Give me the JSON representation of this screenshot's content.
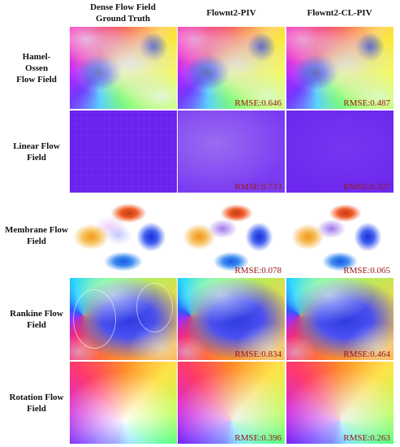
{
  "columns": [
    {
      "line1": "Dense Flow Field",
      "line2": "Ground Truth"
    },
    {
      "line1": "Flownt2-PIV",
      "line2": ""
    },
    {
      "line1": "Flownt2-CL-PIV",
      "line2": ""
    }
  ],
  "rows": [
    {
      "label_lines": [
        "Hamel-",
        "Ossen",
        "Flow Field"
      ],
      "rmse_flownet2": "RMSE:0.646",
      "rmse_cl": "RMSE:0.487"
    },
    {
      "label_lines": [
        "Linear Flow",
        "Field"
      ],
      "rmse_flownet2": "RMSE:0.733",
      "rmse_cl": "RMSE:0.327"
    },
    {
      "label_lines": [
        "Membrane Flow",
        "Field"
      ],
      "rmse_flownet2": "RMSE:0.078",
      "rmse_cl": "RMSE:0.065"
    },
    {
      "label_lines": [
        "Rankine Flow",
        "Field"
      ],
      "rmse_flownet2": "RMSE:0.834",
      "rmse_cl": "RMSE:0.464"
    },
    {
      "label_lines": [
        "Rotation Flow",
        "Field"
      ],
      "rmse_flownet2": "RMSE:0.396",
      "rmse_cl": "RMSE:0.263"
    }
  ],
  "colors": {
    "rmse_text": "#a01818",
    "linear_field": "#6a22ee"
  }
}
